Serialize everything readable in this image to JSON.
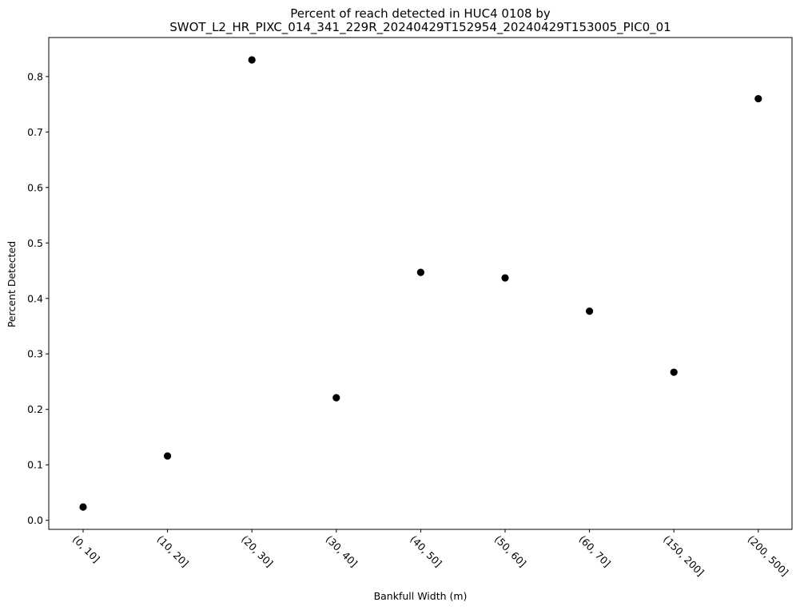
{
  "chart_data": {
    "type": "scatter",
    "title_line1": "Percent of reach detected in HUC4 0108 by",
    "title_line2": "SWOT_L2_HR_PIXC_014_341_229R_20240429T152954_20240429T153005_PIC0_01",
    "xlabel": "Bankfull Width (m)",
    "ylabel": "Percent Detected",
    "categories": [
      "(0, 10]",
      "(10, 20]",
      "(20, 30]",
      "(30, 40]",
      "(40, 50]",
      "(50, 60]",
      "(60, 70]",
      "(150, 200]",
      "(200, 500]"
    ],
    "values": [
      0.024,
      0.116,
      0.83,
      0.221,
      0.447,
      0.437,
      0.377,
      0.267,
      0.76
    ],
    "ylim": [
      -0.0163,
      0.8703
    ],
    "yticks": [
      0.0,
      0.1,
      0.2,
      0.3,
      0.4,
      0.5,
      0.6,
      0.7,
      0.8
    ],
    "ytick_labels": [
      "0.0",
      "0.1",
      "0.2",
      "0.3",
      "0.4",
      "0.5",
      "0.6",
      "0.7",
      "0.8"
    ],
    "marker_color": "#000000",
    "grid": false,
    "legend": "none"
  }
}
